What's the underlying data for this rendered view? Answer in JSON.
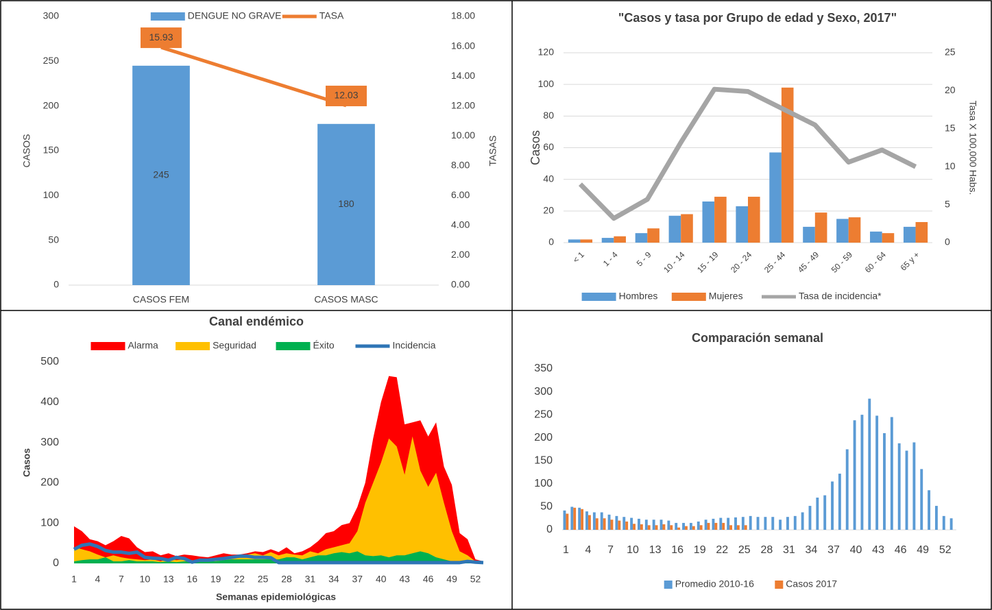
{
  "chart_data": [
    {
      "type": "combo",
      "categories": [
        "CASOS FEM",
        "CASOS MASC"
      ],
      "series": [
        {
          "name": "DENGUE NO GRAVE",
          "type": "bar",
          "color": "#5b9bd5",
          "values": [
            245,
            180
          ],
          "data_labels": true
        },
        {
          "name": "TASA",
          "type": "line",
          "axis": "y2",
          "color": "#ed7d31",
          "values": [
            15.93,
            12.03
          ],
          "value_labels": [
            "15.93",
            "12.03"
          ]
        }
      ],
      "ylabel": "CASOS",
      "y2label": "TASAS",
      "ylim": [
        0,
        300
      ],
      "yticks": [
        0,
        50,
        100,
        150,
        200,
        250,
        300
      ],
      "y2lim": [
        0,
        18
      ],
      "y2ticks": [
        {
          "value": 0,
          "label": "0.00"
        },
        {
          "value": 2,
          "label": "2.00"
        },
        {
          "value": 4,
          "label": "4.00"
        },
        {
          "value": 6,
          "label": "6.00"
        },
        {
          "value": 8,
          "label": "8.00"
        },
        {
          "value": 10,
          "label": "10.00"
        },
        {
          "value": 12,
          "label": "12.00"
        },
        {
          "value": 14,
          "label": "14.00"
        },
        {
          "value": 16,
          "label": "16.00"
        },
        {
          "value": 18,
          "label": "18.00"
        }
      ],
      "grid": false,
      "legend": "top"
    },
    {
      "type": "combo",
      "title": "\"Casos y tasa por Grupo de edad y Sexo, 2017\"",
      "categories": [
        "< 1",
        "1 - 4",
        "5 - 9",
        "10 - 14",
        "15 - 19",
        "20 - 24",
        "25 - 44",
        "45 - 49",
        "50 - 59",
        "60 - 64",
        "65 y +"
      ],
      "series": [
        {
          "name": "Hombres",
          "type": "bar",
          "color": "#5b9bd5",
          "values": [
            2,
            3,
            6,
            17,
            26,
            23,
            57,
            10,
            15,
            7,
            10
          ]
        },
        {
          "name": "Mujeres",
          "type": "bar",
          "color": "#ed7d31",
          "values": [
            2,
            4,
            9,
            18,
            29,
            29,
            98,
            19,
            16,
            6,
            13
          ]
        },
        {
          "name": "Tasa de incidencia*",
          "type": "line",
          "axis": "y2",
          "color": "#a5a5a5",
          "values": [
            7.7,
            3.2,
            5.7,
            13.2,
            20.2,
            19.9,
            17.7,
            15.5,
            10.6,
            12.2,
            10.0
          ]
        }
      ],
      "ylabel": "Casos",
      "y2label": "Tasa X 100,000 Habs.",
      "ylim": [
        0,
        120
      ],
      "yticks": [
        0,
        20,
        40,
        60,
        80,
        100,
        120
      ],
      "y2lim": [
        0,
        25
      ],
      "y2ticks": [
        0,
        5,
        10,
        15,
        20,
        25
      ],
      "grid": true,
      "legend": "bottom"
    },
    {
      "type": "area",
      "title": "Canal endémico",
      "x": [
        1,
        2,
        3,
        4,
        5,
        6,
        7,
        8,
        9,
        10,
        11,
        12,
        13,
        14,
        15,
        16,
        17,
        18,
        19,
        20,
        21,
        22,
        23,
        24,
        25,
        26,
        27,
        28,
        29,
        30,
        31,
        32,
        33,
        34,
        35,
        36,
        37,
        38,
        39,
        40,
        41,
        42,
        43,
        44,
        45,
        46,
        47,
        48,
        49,
        50,
        51,
        52,
        53
      ],
      "series": [
        {
          "name": "Alarma",
          "type": "area",
          "color": "#ff0000",
          "values": [
            92,
            80,
            60,
            55,
            45,
            55,
            68,
            62,
            40,
            28,
            30,
            20,
            25,
            18,
            22,
            20,
            17,
            15,
            20,
            25,
            22,
            22,
            25,
            30,
            28,
            35,
            28,
            40,
            25,
            30,
            40,
            55,
            75,
            80,
            95,
            100,
            140,
            200,
            310,
            400,
            465,
            462,
            345,
            350,
            355,
            315,
            350,
            240,
            195,
            75,
            60,
            10,
            5
          ]
        },
        {
          "name": "Seguridad",
          "type": "area",
          "color": "#ffc000",
          "values": [
            40,
            35,
            30,
            22,
            15,
            20,
            15,
            12,
            10,
            8,
            10,
            5,
            12,
            8,
            10,
            8,
            5,
            8,
            10,
            15,
            18,
            20,
            22,
            25,
            20,
            28,
            20,
            25,
            22,
            20,
            30,
            25,
            35,
            40,
            45,
            50,
            80,
            150,
            200,
            250,
            310,
            290,
            220,
            315,
            230,
            190,
            225,
            150,
            80,
            30,
            20,
            5,
            2
          ]
        },
        {
          "name": "Éxito",
          "type": "area",
          "color": "#00b050",
          "values": [
            5,
            8,
            10,
            10,
            15,
            5,
            5,
            8,
            5,
            5,
            5,
            3,
            5,
            3,
            5,
            5,
            5,
            5,
            5,
            8,
            10,
            10,
            10,
            10,
            10,
            10,
            10,
            15,
            15,
            10,
            15,
            20,
            20,
            25,
            28,
            25,
            30,
            20,
            18,
            20,
            15,
            20,
            20,
            25,
            30,
            25,
            15,
            10,
            5,
            3,
            3,
            2,
            0
          ]
        },
        {
          "name": "Incidencia",
          "type": "line",
          "color": "#2e75b6",
          "values": [
            35,
            45,
            48,
            42,
            32,
            28,
            28,
            25,
            28,
            15,
            13,
            12,
            8,
            15,
            12,
            3,
            8,
            8,
            10,
            12,
            15,
            18,
            18,
            15,
            15,
            14,
            2,
            2,
            2,
            2,
            2,
            2,
            2,
            2,
            2,
            2,
            2,
            2,
            2,
            2,
            2,
            2,
            2,
            2,
            2,
            2,
            2,
            2,
            2,
            2,
            5,
            3,
            2
          ]
        }
      ],
      "xlabel": "Semanas epidemiológicas",
      "ylabel": "Casos",
      "xlim": [
        1,
        53
      ],
      "xticks": [
        1,
        4,
        7,
        10,
        13,
        16,
        19,
        22,
        25,
        28,
        31,
        34,
        37,
        40,
        43,
        46,
        49,
        52
      ],
      "ylim": [
        0,
        500
      ],
      "yticks": [
        0,
        100,
        200,
        300,
        400,
        500
      ],
      "grid": false,
      "legend": "top"
    },
    {
      "type": "bar",
      "title": "Comparación semanal",
      "categories": [
        1,
        null,
        null,
        4,
        null,
        null,
        7,
        null,
        null,
        10,
        null,
        null,
        13,
        null,
        null,
        16,
        null,
        null,
        19,
        null,
        null,
        22,
        null,
        null,
        25,
        null,
        null,
        28,
        null,
        null,
        31,
        null,
        null,
        34,
        null,
        null,
        37,
        null,
        null,
        40,
        null,
        null,
        43,
        null,
        null,
        46,
        null,
        null,
        49,
        null,
        null,
        52,
        null
      ],
      "series": [
        {
          "name": "Promedio 2010-16",
          "color": "#5b9bd5",
          "values": [
            42,
            50,
            48,
            40,
            38,
            38,
            33,
            30,
            28,
            26,
            24,
            22,
            22,
            22,
            20,
            15,
            15,
            15,
            18,
            22,
            24,
            26,
            26,
            27,
            28,
            30,
            28,
            28,
            28,
            22,
            28,
            30,
            38,
            52,
            70,
            75,
            105,
            122,
            175,
            238,
            250,
            285,
            248,
            210,
            245,
            188,
            172,
            190,
            132,
            86,
            52,
            30,
            25
          ]
        },
        {
          "name": "Casos 2017",
          "color": "#ed7d31",
          "values": [
            35,
            48,
            45,
            32,
            25,
            25,
            22,
            20,
            18,
            13,
            12,
            10,
            10,
            12,
            10,
            5,
            8,
            8,
            10,
            15,
            15,
            15,
            10,
            10,
            10,
            null,
            null,
            null,
            null,
            null,
            null,
            null,
            null,
            null,
            null,
            null,
            null,
            null,
            null,
            null,
            null,
            null,
            null,
            null,
            null,
            null,
            null,
            null,
            null,
            null,
            null,
            null,
            null
          ]
        }
      ],
      "ylim": [
        0,
        350
      ],
      "yticks": [
        0,
        50,
        100,
        150,
        200,
        250,
        300,
        350
      ],
      "grid": false,
      "legend": "bottom"
    }
  ]
}
